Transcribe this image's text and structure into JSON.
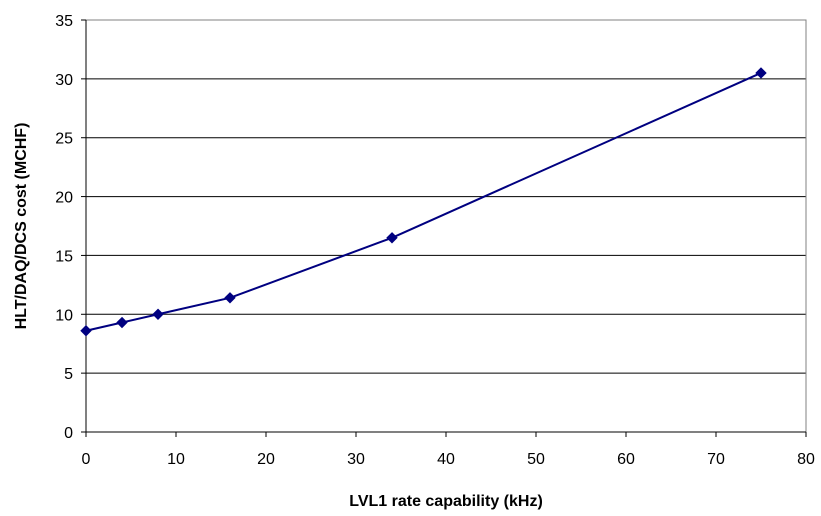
{
  "chart_data": {
    "type": "line",
    "title": "",
    "xlabel": "LVL1 rate capability (kHz)",
    "ylabel": "HLT/DAQ/DCS cost (MCHF)",
    "xlim": [
      0,
      80
    ],
    "ylim": [
      0,
      35
    ],
    "xticks": [
      "0",
      "10",
      "20",
      "30",
      "40",
      "50",
      "60",
      "70",
      "80"
    ],
    "yticks": [
      "0",
      "5",
      "10",
      "15",
      "20",
      "25",
      "30",
      "35"
    ],
    "grid": "horizontal",
    "legend": "none",
    "series": [
      {
        "color": "#000080",
        "marker": "diamond",
        "x": [
          0,
          4,
          8,
          16,
          34,
          75
        ],
        "y": [
          8.6,
          9.3,
          10.0,
          11.4,
          16.5,
          30.5
        ]
      }
    ]
  }
}
